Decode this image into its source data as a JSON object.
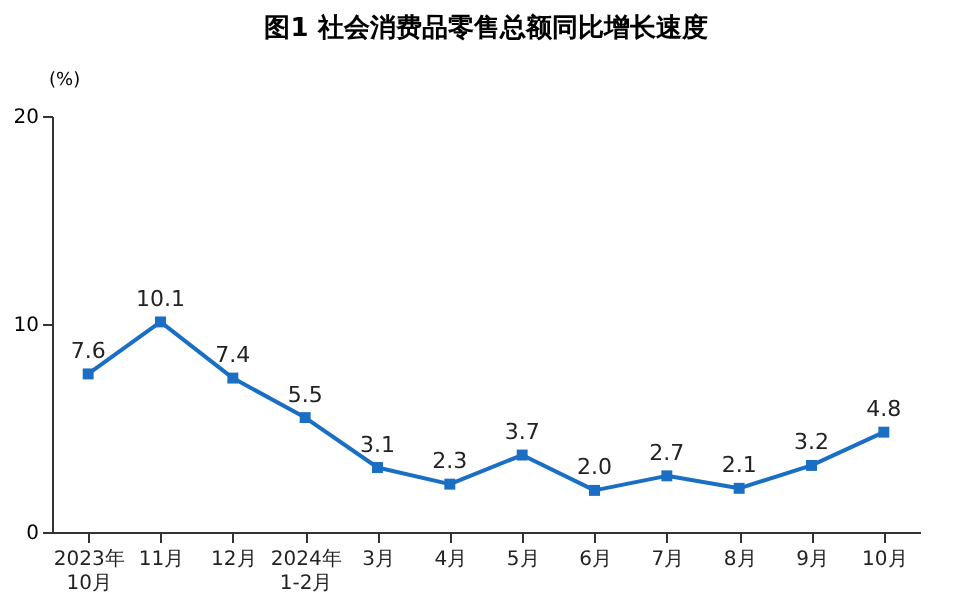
{
  "chart_data": {
    "type": "line",
    "title": "图1  社会消费品零售总额同比增长速度",
    "ylabel": "(%)",
    "categories": [
      "2023年\n10月",
      "11月",
      "12月",
      "2024年\n1-2月",
      "3月",
      "4月",
      "5月",
      "6月",
      "7月",
      "8月",
      "9月",
      "10月"
    ],
    "series": [
      {
        "color": "#1a6fc4",
        "values": [
          7.6,
          10.1,
          7.4,
          5.5,
          3.1,
          2.3,
          3.7,
          2.0,
          2.7,
          2.1,
          3.2,
          4.8
        ],
        "value_labels": [
          "7.6",
          "10.1",
          "7.4",
          "5.5",
          "3.1",
          "2.3",
          "3.7",
          "2.0",
          "2.7",
          "2.1",
          "3.2",
          "4.8"
        ]
      }
    ],
    "ylim": [
      0,
      20
    ],
    "yticks": [
      0,
      10,
      20
    ],
    "marker": "square",
    "grid": false,
    "line_style": "solid"
  }
}
